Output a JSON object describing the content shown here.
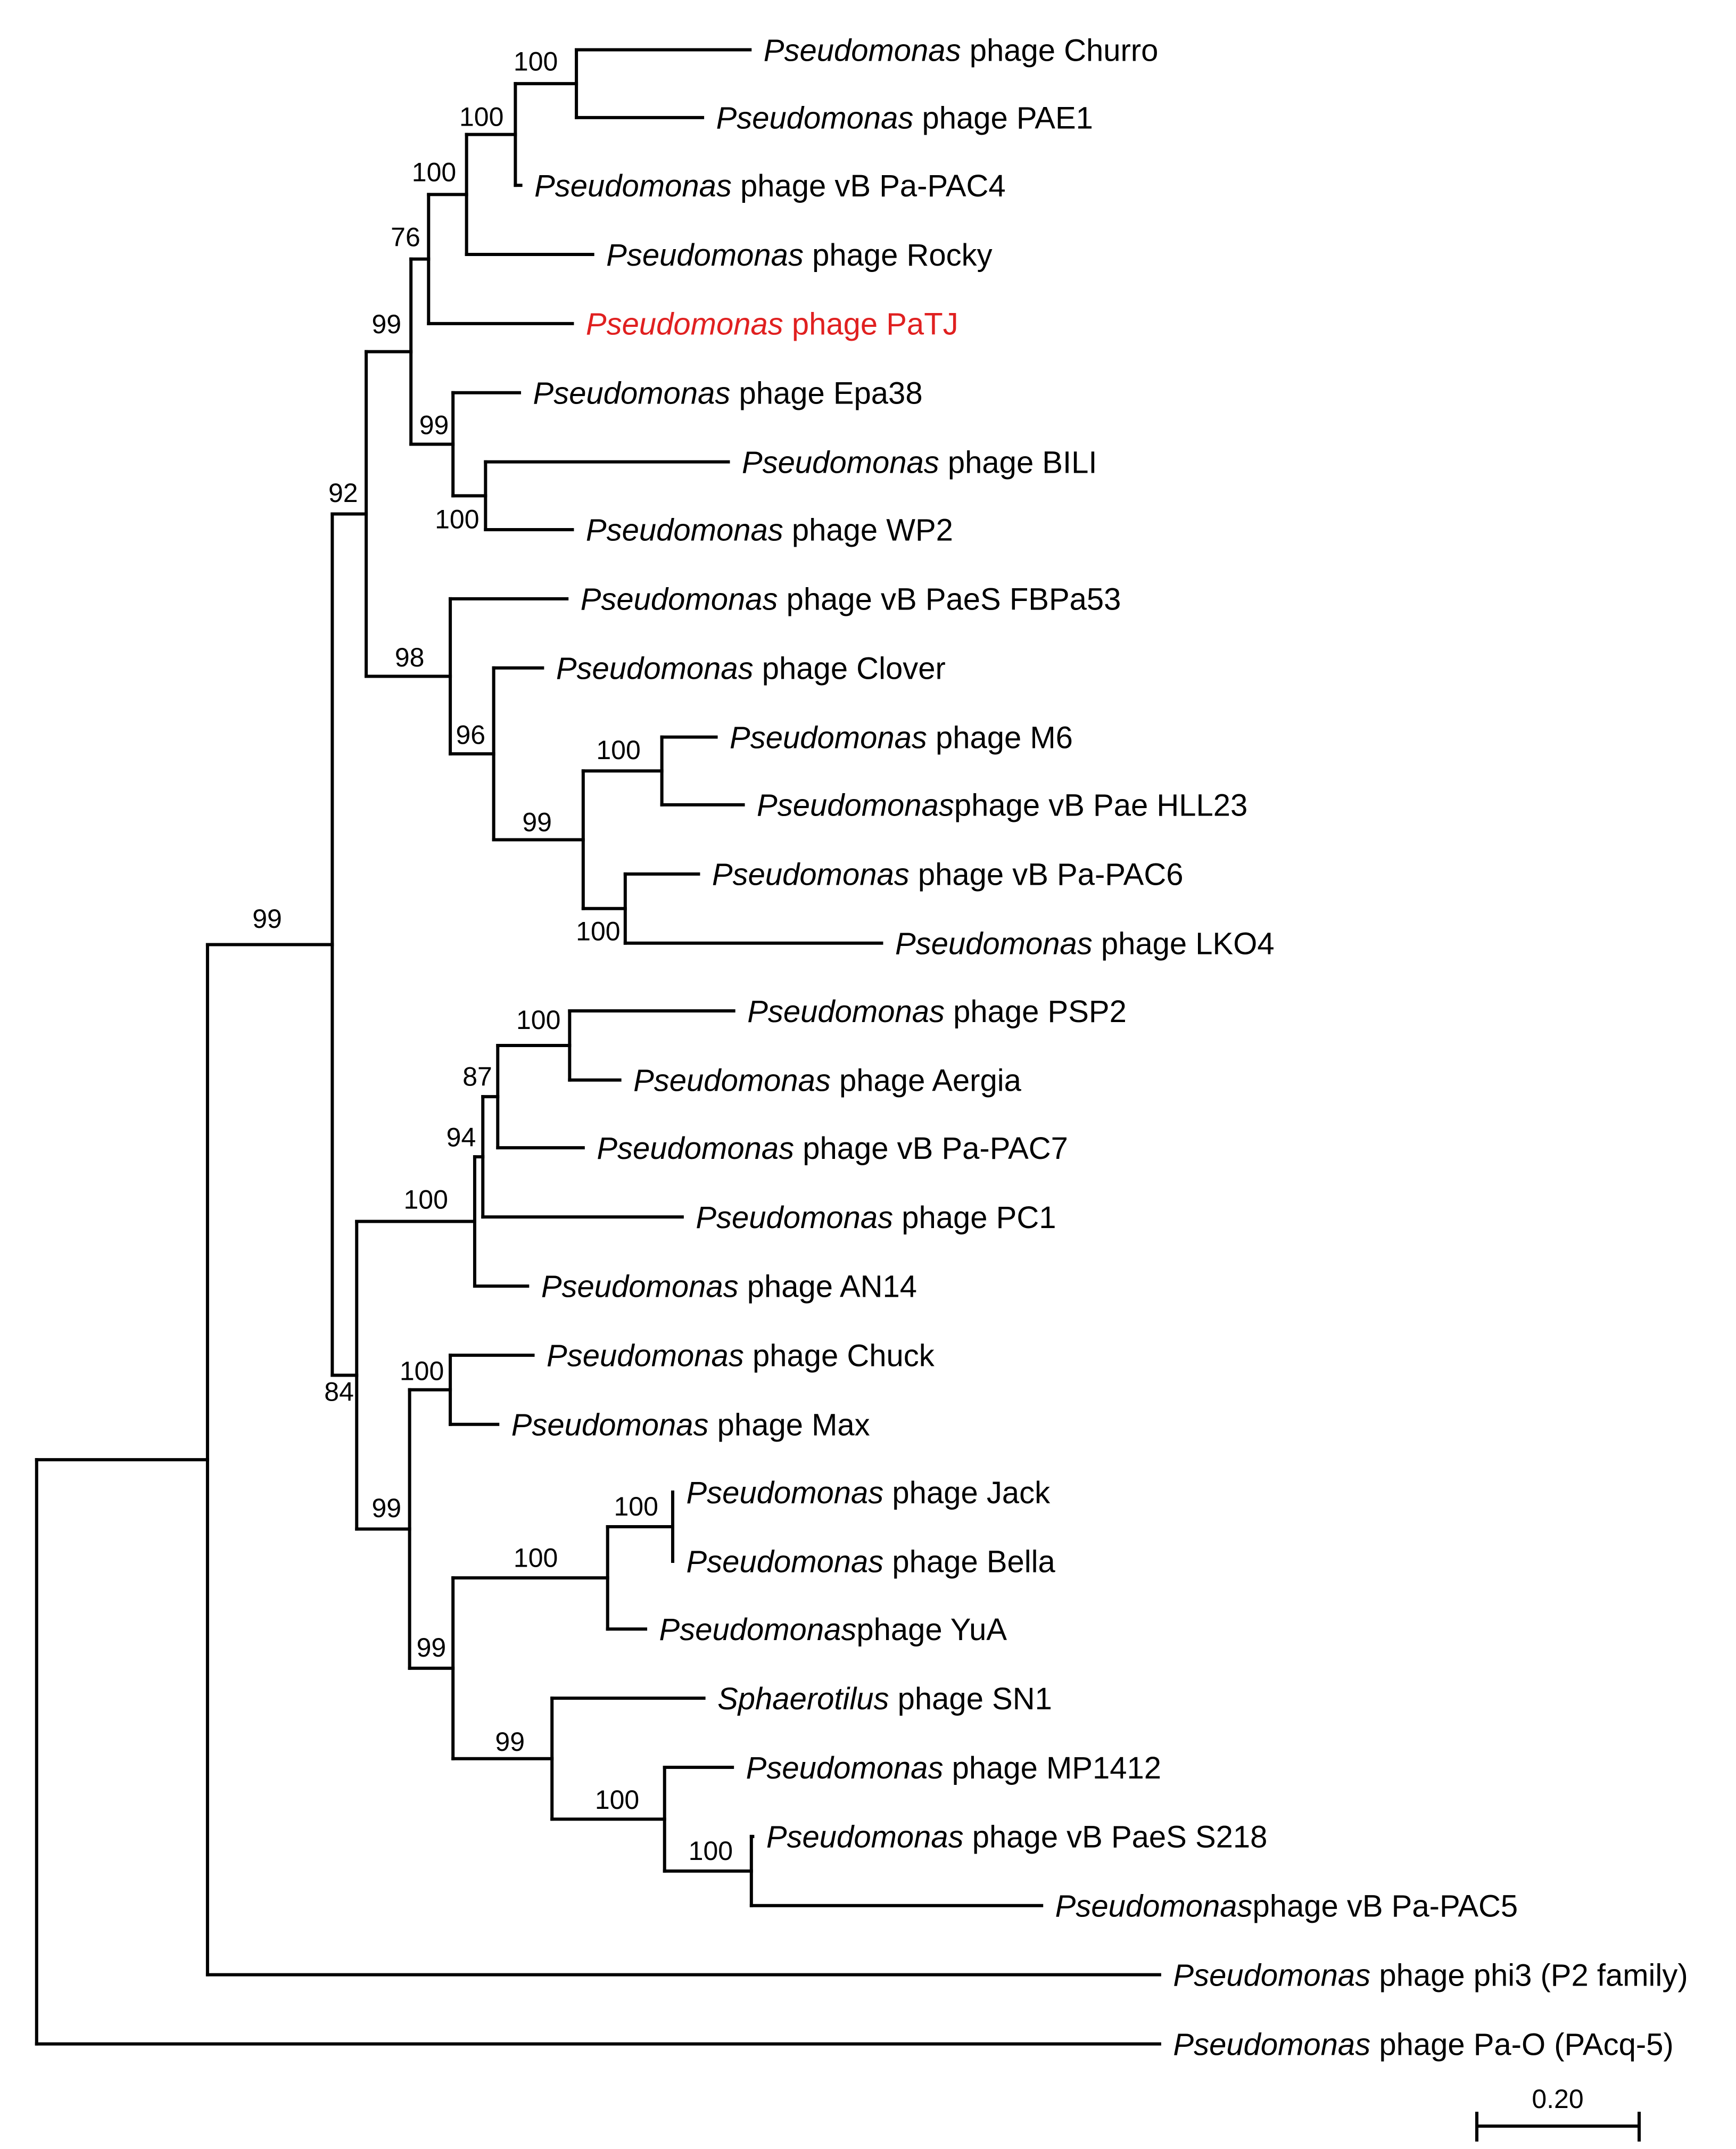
{
  "figure": {
    "highlight_color": "#e02020",
    "line_color": "#000000",
    "scale_bar_label": "0.20"
  },
  "taxa": [
    {
      "genus": "Pseudomonas",
      "rest": " phage Churro"
    },
    {
      "genus": "Pseudomonas",
      "rest": " phage PAE1"
    },
    {
      "genus": "Pseudomonas",
      "rest": " phage vB Pa-PAC4"
    },
    {
      "genus": "Pseudomonas",
      "rest": " phage Rocky"
    },
    {
      "genus": "Pseudomonas",
      "rest": " phage PaTJ",
      "highlight": true
    },
    {
      "genus": "Pseudomonas",
      "rest": " phage Epa38"
    },
    {
      "genus": "Pseudomonas",
      "rest": " phage BILI"
    },
    {
      "genus": "Pseudomonas",
      "rest": " phage WP2"
    },
    {
      "genus": "Pseudomonas",
      "rest": " phage vB PaeS FBPa53"
    },
    {
      "genus": "Pseudomonas",
      "rest": " phage Clover"
    },
    {
      "genus": "Pseudomonas",
      "rest": " phage M6"
    },
    {
      "genus": "Pseudomonas",
      "rest": "phage vB Pae HLL23"
    },
    {
      "genus": "Pseudomonas",
      "rest": " phage vB Pa-PAC6"
    },
    {
      "genus": "Pseudomonas",
      "rest": " phage LKO4"
    },
    {
      "genus": "Pseudomonas",
      "rest": " phage PSP2"
    },
    {
      "genus": "Pseudomonas",
      "rest": " phage Aergia"
    },
    {
      "genus": "Pseudomonas",
      "rest": " phage vB Pa-PAC7"
    },
    {
      "genus": "Pseudomonas",
      "rest": " phage PC1"
    },
    {
      "genus": "Pseudomonas",
      "rest": " phage AN14"
    },
    {
      "genus": "Pseudomonas",
      "rest": " phage Chuck"
    },
    {
      "genus": "Pseudomonas",
      "rest": " phage Max"
    },
    {
      "genus": "Pseudomonas",
      "rest": " phage Jack"
    },
    {
      "genus": "Pseudomonas",
      "rest": " phage Bella"
    },
    {
      "genus": "Pseudomonas",
      "rest": "phage YuA"
    },
    {
      "genus": "Sphaerotilus",
      "rest": " phage SN1"
    },
    {
      "genus": "Pseudomonas",
      "rest": " phage MP1412"
    },
    {
      "genus": "Pseudomonas",
      "rest": " phage vB PaeS S218"
    },
    {
      "genus": "Pseudomonas",
      "rest": "phage vB Pa-PAC5"
    },
    {
      "genus": "Pseudomonas",
      "rest": " phage phi3 (P2 family)"
    },
    {
      "genus": "Pseudomonas",
      "rest": " phage Pa-O (PAcq-5)"
    }
  ],
  "bootstrap_values": [
    "100",
    "100",
    "100",
    "76",
    "99",
    "99",
    "100",
    "92",
    "98",
    "96",
    "100",
    "99",
    "100",
    "99",
    "100",
    "87",
    "94",
    "100",
    "100",
    "100",
    "100",
    "99",
    "99",
    "100",
    "84"
  ]
}
